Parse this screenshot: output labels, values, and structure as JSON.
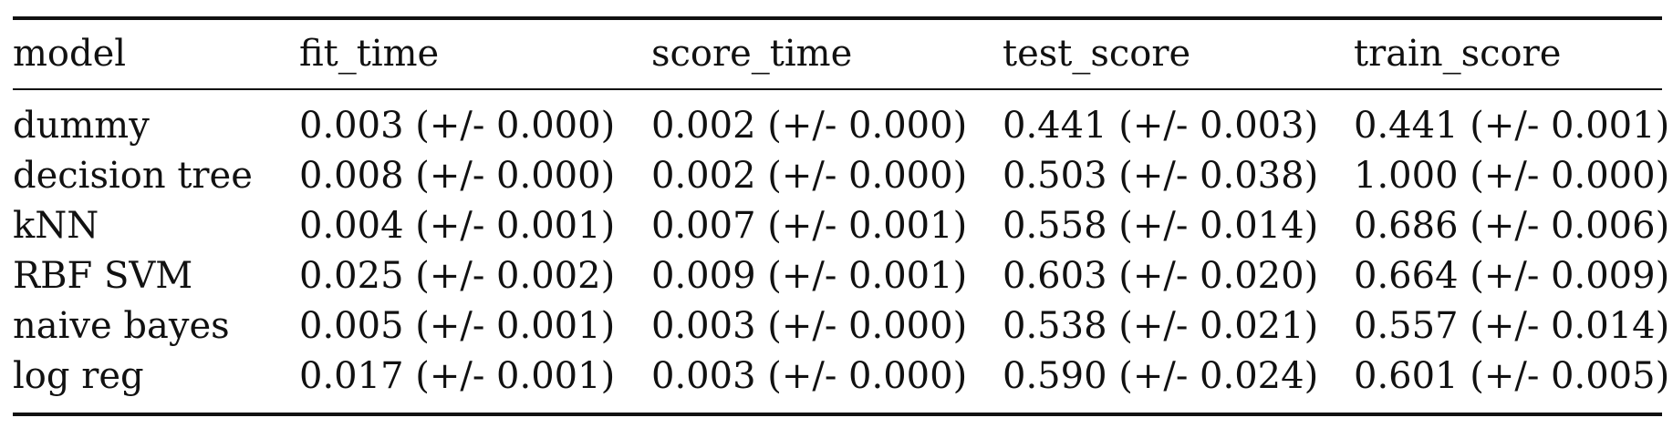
{
  "table": {
    "headers": [
      "model",
      "fit_time",
      "score_time",
      "test_score",
      "train_score"
    ],
    "rows": [
      [
        "dummy",
        "0.003 (+/- 0.000)",
        "0.002 (+/- 0.000)",
        "0.441 (+/- 0.003)",
        "0.441 (+/- 0.001)"
      ],
      [
        "decision tree",
        "0.008 (+/- 0.000)",
        "0.002 (+/- 0.000)",
        "0.503 (+/- 0.038)",
        "1.000 (+/- 0.000)"
      ],
      [
        "kNN",
        "0.004 (+/- 0.001)",
        "0.007 (+/- 0.001)",
        "0.558 (+/- 0.014)",
        "0.686 (+/- 0.006)"
      ],
      [
        "RBF SVM",
        "0.025 (+/- 0.002)",
        "0.009 (+/- 0.001)",
        "0.603 (+/- 0.020)",
        "0.664 (+/- 0.009)"
      ],
      [
        "naive bayes",
        "0.005 (+/- 0.001)",
        "0.003 (+/- 0.000)",
        "0.538 (+/- 0.021)",
        "0.557 (+/- 0.014)"
      ],
      [
        "log reg",
        "0.017 (+/- 0.001)",
        "0.003 (+/- 0.000)",
        "0.590 (+/- 0.024)",
        "0.601 (+/- 0.005)"
      ]
    ]
  }
}
